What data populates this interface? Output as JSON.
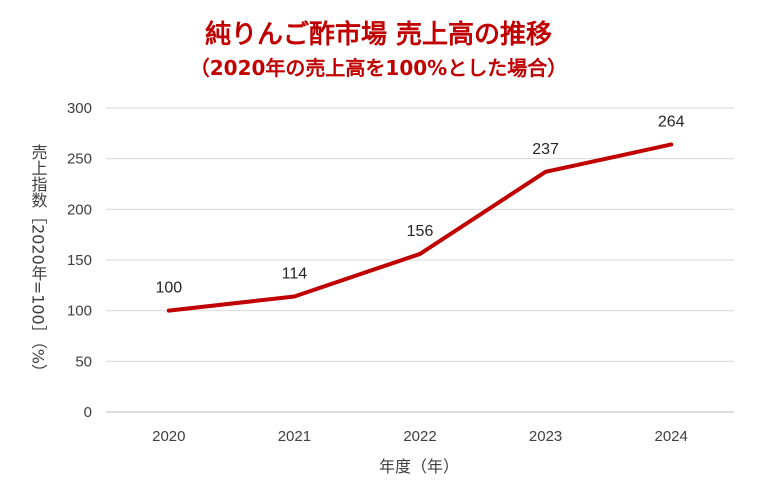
{
  "chart_data": {
    "type": "line",
    "title": "純りんご酢市場 売上高の推移",
    "subtitle": "（2020年の売上高を100%とした場合）",
    "xlabel": "年度（年）",
    "ylabel": "売上指数［2020年=100］（%）",
    "categories": [
      "2020",
      "2021",
      "2022",
      "2023",
      "2024"
    ],
    "series": [
      {
        "name": "",
        "values": [
          100,
          114,
          156,
          237,
          264
        ]
      }
    ],
    "data_labels": [
      "100",
      "114",
      "156",
      "237",
      "264"
    ],
    "yticks": [
      "0",
      "50",
      "100",
      "150",
      "200",
      "250",
      "300"
    ],
    "ylim": [
      0,
      300
    ],
    "grid": true,
    "legend": "none",
    "line_color": "#c00000"
  }
}
